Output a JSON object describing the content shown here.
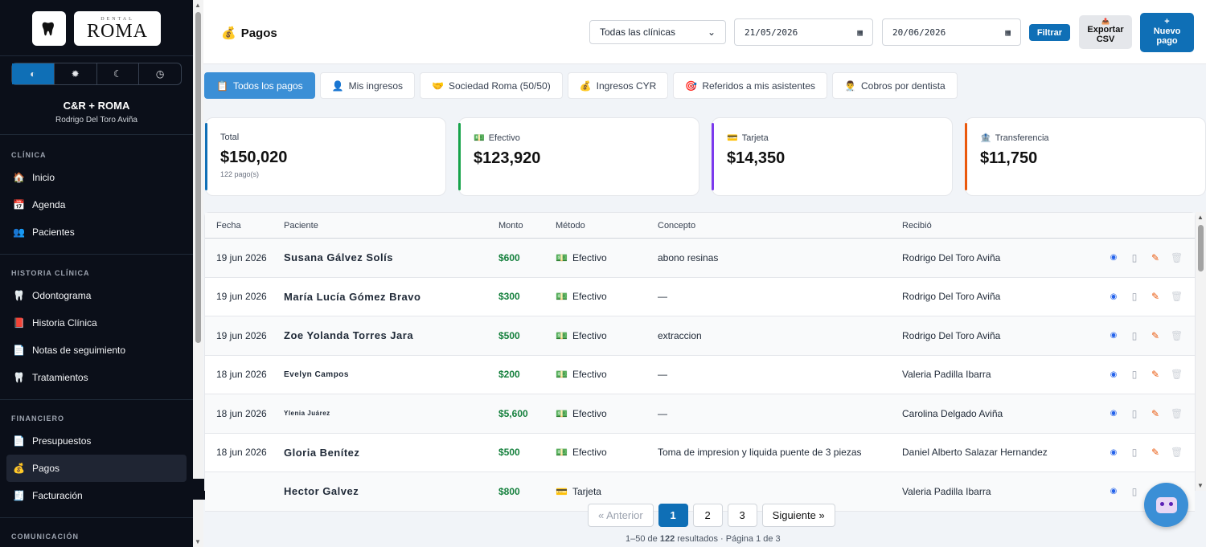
{
  "sidebar": {
    "logo_small": "DENTAL",
    "logo_big": "ROMA",
    "theme_buttons": [
      "◐",
      "✹",
      "☾",
      "◷"
    ],
    "clinic_name": "C&R + ROMA",
    "user_name": "Rodrigo Del Toro Aviña",
    "sections": [
      {
        "title": "CLÍNICA",
        "items": [
          {
            "label": "Inicio",
            "icon": "🏠"
          },
          {
            "label": "Agenda",
            "icon": "📅"
          },
          {
            "label": "Pacientes",
            "icon": "👥"
          }
        ]
      },
      {
        "title": "HISTORIA CLÍNICA",
        "items": [
          {
            "label": "Odontograma",
            "icon": "🦷"
          },
          {
            "label": "Historia Clínica",
            "icon": "📕"
          },
          {
            "label": "Notas de seguimiento",
            "icon": "📄"
          },
          {
            "label": "Tratamientos",
            "icon": "🦷"
          }
        ]
      },
      {
        "title": "FINANCIERO",
        "items": [
          {
            "label": "Presupuestos",
            "icon": "📄"
          },
          {
            "label": "Pagos",
            "icon": "💰"
          },
          {
            "label": "Facturación",
            "icon": "🧾"
          }
        ]
      },
      {
        "title": "COMUNICACIÓN",
        "items": []
      }
    ]
  },
  "header": {
    "title": "Pagos",
    "clinic_select": "Todas las clínicas",
    "date_from": "21/05/2026",
    "date_to": "20/06/2026",
    "filter_label": "Filtrar",
    "export_icon": "📤",
    "export_label_1": "Exportar",
    "export_label_2": "CSV",
    "new_label_1": "+",
    "new_label_2": "Nuevo",
    "new_label_3": "pago"
  },
  "tabs": [
    {
      "label": "Todos los pagos",
      "icon": "📋"
    },
    {
      "label": "Mis ingresos",
      "icon": "👤"
    },
    {
      "label": "Sociedad Roma (50/50)",
      "icon": "🤝"
    },
    {
      "label": "Ingresos CYR",
      "icon": "💰"
    },
    {
      "label": "Referidos a mis asistentes",
      "icon": "🎯"
    },
    {
      "label": "Cobros por dentista",
      "icon": "👨‍⚕️"
    }
  ],
  "cards": [
    {
      "label": "Total",
      "icon": "",
      "value": "$150,020",
      "sub": "122 pago(s)",
      "color": "#0f6fb6"
    },
    {
      "label": "Efectivo",
      "icon": "💵",
      "value": "$123,920",
      "sub": "",
      "color": "#16a34a"
    },
    {
      "label": "Tarjeta",
      "icon": "💳",
      "value": "$14,350",
      "sub": "",
      "color": "#7c3aed"
    },
    {
      "label": "Transferencia",
      "icon": "🏦",
      "value": "$11,750",
      "sub": "",
      "color": "#ea580c"
    }
  ],
  "table": {
    "headers": {
      "fecha": "Fecha",
      "paciente": "Paciente",
      "monto": "Monto",
      "metodo": "Método",
      "concepto": "Concepto",
      "recibio": "Recibió"
    },
    "rows": [
      {
        "fecha": "19 jun 2026",
        "paciente": "Susana Gálvez Solís",
        "monto": "$600",
        "metodo": "Efectivo",
        "concepto": "abono resinas",
        "recibio": "Rodrigo Del Toro Aviña",
        "pac_size": "13px"
      },
      {
        "fecha": "19 jun 2026",
        "paciente": "María Lucía Gómez Bravo",
        "monto": "$300",
        "metodo": "Efectivo",
        "concepto": "—",
        "recibio": "Rodrigo Del Toro Aviña",
        "pac_size": "13px"
      },
      {
        "fecha": "19 jun 2026",
        "paciente": "Zoe Yolanda Torres Jara",
        "monto": "$500",
        "metodo": "Efectivo",
        "concepto": "extraccion",
        "recibio": "Rodrigo Del Toro Aviña",
        "pac_size": "13px"
      },
      {
        "fecha": "18 jun 2026",
        "paciente": "Evelyn Campos",
        "monto": "$200",
        "metodo": "Efectivo",
        "concepto": "—",
        "recibio": "Valeria Padilla Ibarra",
        "pac_size": "10px"
      },
      {
        "fecha": "18 jun 2026",
        "paciente": "Ylenia Juárez",
        "monto": "$5,600",
        "metodo": "Efectivo",
        "concepto": "—",
        "recibio": "Carolina Delgado Aviña",
        "pac_size": "8px"
      },
      {
        "fecha": "18 jun 2026",
        "paciente": "Gloria Benítez",
        "monto": "$500",
        "metodo": "Efectivo",
        "concepto": "Toma de impresion y liquida puente de 3 piezas",
        "recibio": "Daniel Alberto Salazar Hernandez",
        "pac_size": "13px"
      },
      {
        "fecha": "",
        "paciente": "Hector Galvez",
        "monto": "$800",
        "metodo": "Tarjeta",
        "concepto": "",
        "recibio": "Valeria Padilla Ibarra",
        "pac_size": "13px"
      }
    ]
  },
  "pagination": {
    "prev": "« Anterior",
    "pages": [
      "1",
      "2",
      "3"
    ],
    "next": "Siguiente »",
    "info_prefix": "1–50 de ",
    "info_total": "122",
    "info_suffix": " resultados · Página 1 de 3"
  }
}
